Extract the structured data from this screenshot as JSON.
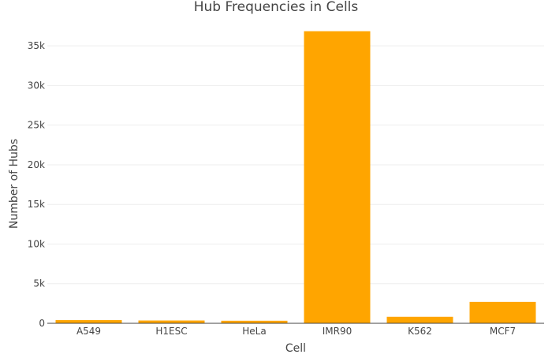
{
  "chart_data": {
    "type": "bar",
    "title": "Hub Frequencies in Cells",
    "xlabel": "Cell",
    "ylabel": "Number of Hubs",
    "categories": [
      "A549",
      "H1ESC",
      "HeLa",
      "IMR90",
      "K562",
      "MCF7"
    ],
    "values": [
      400,
      350,
      320,
      36850,
      820,
      2700
    ],
    "ylim": [
      0,
      38000
    ],
    "yticks": [
      0,
      5000,
      10000,
      15000,
      20000,
      25000,
      30000,
      35000
    ],
    "ytick_labels": [
      "0",
      "5k",
      "10k",
      "15k",
      "20k",
      "25k",
      "30k",
      "35k"
    ],
    "grid": true,
    "bar_color": "#FFA500"
  }
}
